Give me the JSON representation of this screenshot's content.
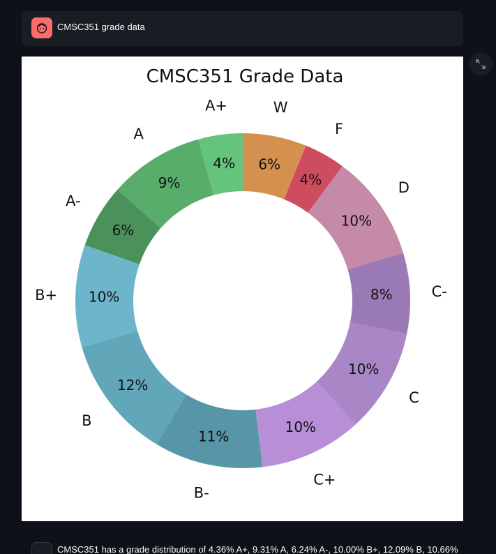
{
  "message": {
    "text": "CMSC351 grade data",
    "avatar_icon": "face-icon",
    "avatar_color": "#ff6b6b"
  },
  "expand_button": {
    "icon": "expand-icon"
  },
  "bottom_message": {
    "text": "CMSC351 has a grade distribution of 4.36% A+, 9.31% A, 6.24% A-, 10.00% B+, 12.09% B, 10.66%"
  },
  "chart_data": {
    "type": "pie",
    "style": "donut",
    "title": "CMSC351 Grade Data",
    "start_angle_deg": 90,
    "direction": "counterclockwise",
    "slices": [
      {
        "label": "A+",
        "value": 4.36,
        "pct_label": "4%",
        "color": "#64c47b"
      },
      {
        "label": "A",
        "value": 9.31,
        "pct_label": "9%",
        "color": "#58ad6b"
      },
      {
        "label": "A-",
        "value": 6.24,
        "pct_label": "6%",
        "color": "#4b925a"
      },
      {
        "label": "B+",
        "value": 10.0,
        "pct_label": "10%",
        "color": "#6cb5cb"
      },
      {
        "label": "B",
        "value": 12.09,
        "pct_label": "12%",
        "color": "#61a6b9"
      },
      {
        "label": "B-",
        "value": 10.66,
        "pct_label": "11%",
        "color": "#5796a6"
      },
      {
        "label": "C+",
        "value": 10.05,
        "pct_label": "10%",
        "color": "#b88ed7"
      },
      {
        "label": "C",
        "value": 10.2,
        "pct_label": "10%",
        "color": "#a986c6"
      },
      {
        "label": "C-",
        "value": 7.9,
        "pct_label": "8%",
        "color": "#9a7ab4"
      },
      {
        "label": "D",
        "value": 10.4,
        "pct_label": "10%",
        "color": "#c58aa8"
      },
      {
        "label": "F",
        "value": 4.05,
        "pct_label": "4%",
        "color": "#cd4c5e"
      },
      {
        "label": "W",
        "value": 6.24,
        "pct_label": "6%",
        "color": "#d3904f"
      }
    ]
  }
}
